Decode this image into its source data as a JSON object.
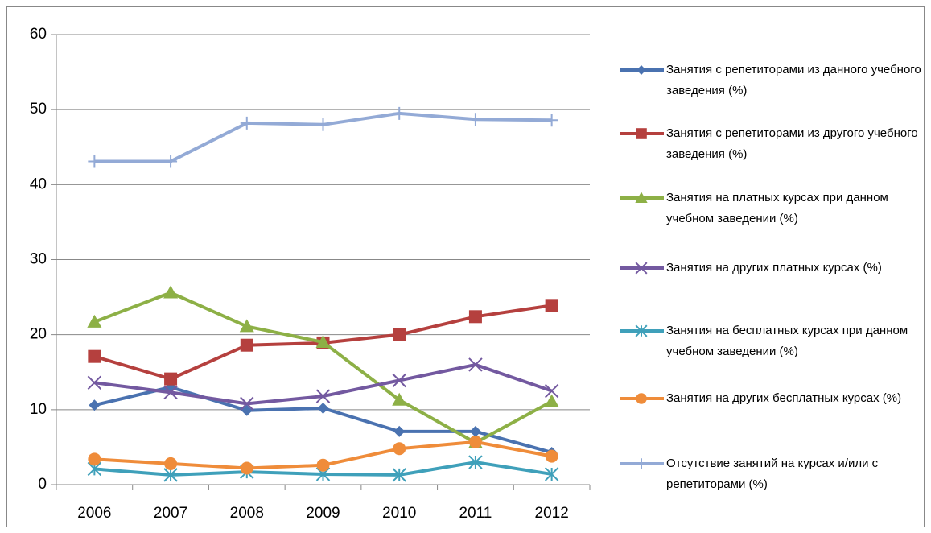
{
  "chart_data": {
    "type": "line",
    "categories": [
      "2006",
      "2007",
      "2008",
      "2009",
      "2010",
      "2011",
      "2012"
    ],
    "ylim": [
      0,
      60
    ],
    "yticks": [
      0,
      10,
      20,
      30,
      40,
      50,
      60
    ],
    "grid": true,
    "legend": "right",
    "series": [
      {
        "name": "Занятия с репетиторами из данного учебного заведения (%)",
        "color": "#4a72b0",
        "marker": "diamond",
        "values": [
          10.6,
          13.0,
          9.9,
          10.2,
          7.1,
          7.1,
          4.3
        ]
      },
      {
        "name": "Занятия с  репетиторами из другого учебного заведения (%)",
        "color": "#b5403e",
        "marker": "square",
        "values": [
          17.1,
          14.1,
          18.6,
          18.9,
          20.0,
          22.4,
          23.9
        ]
      },
      {
        "name": "Занятия на платных курсах при данном учебном заведении (%)",
        "color": "#8db046",
        "marker": "triangle",
        "values": [
          21.7,
          25.6,
          21.1,
          19.0,
          11.3,
          5.6,
          11.1
        ]
      },
      {
        "name": "Занятия на других платных курсах (%)",
        "color": "#7359a0",
        "marker": "x",
        "values": [
          13.6,
          12.3,
          10.8,
          11.8,
          13.9,
          16.0,
          12.5
        ]
      },
      {
        "name": "Занятия на бесплатных курсах при данном учебном заведении (%)",
        "color": "#3fa0ba",
        "marker": "star",
        "values": [
          2.1,
          1.3,
          1.7,
          1.4,
          1.3,
          3.0,
          1.4
        ]
      },
      {
        "name": "Занятия на других бесплатных курсах (%)",
        "color": "#ef8c3a",
        "marker": "circle",
        "values": [
          3.4,
          2.8,
          2.2,
          2.6,
          4.8,
          5.7,
          3.8
        ]
      },
      {
        "name": "Отсутствие занятий на курсах и/или с репетиторами (%)",
        "color": "#93aad6",
        "marker": "plus",
        "values": [
          43.1,
          43.1,
          48.2,
          48.0,
          49.5,
          48.7,
          48.6
        ]
      }
    ]
  }
}
